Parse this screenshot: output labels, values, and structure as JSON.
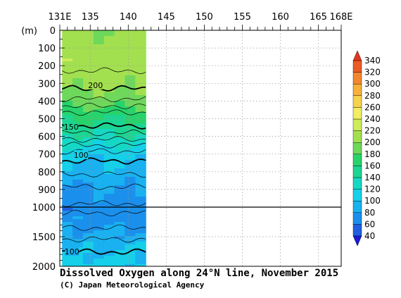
{
  "chart_data": {
    "type": "heatmap",
    "title": "Dissolved Oxygen along 24°N line, November 2015",
    "credit": "(C) Japan Meteorological Agency",
    "x_axis": {
      "range": [
        131,
        168
      ],
      "ticks": [
        {
          "value": 131,
          "label": "131E"
        },
        {
          "value": 135,
          "label": "135"
        },
        {
          "value": 140,
          "label": "140"
        },
        {
          "value": 145,
          "label": "145"
        },
        {
          "value": 150,
          "label": "150"
        },
        {
          "value": 155,
          "label": "155"
        },
        {
          "value": 160,
          "label": "160"
        },
        {
          "value": 165,
          "label": "165"
        },
        {
          "value": 168,
          "label": "168E"
        }
      ]
    },
    "y_axis": {
      "unit_label": "(m)",
      "upper_range": [
        0,
        1000
      ],
      "lower_range": [
        1000,
        2000
      ],
      "upper_ticks": [
        0,
        100,
        200,
        300,
        400,
        500,
        600,
        700,
        800,
        900,
        1000
      ],
      "lower_ticks": [
        1500,
        2000
      ]
    },
    "data_extent_x": [
      131.3,
      142.3
    ],
    "colorbar": {
      "levels": [
        40,
        60,
        80,
        100,
        120,
        140,
        160,
        180,
        200,
        220,
        240,
        260,
        280,
        300,
        320,
        340
      ],
      "colors": [
        "#1f5fe0",
        "#1b8fec",
        "#19b1f0",
        "#15d0e8",
        "#15d8c4",
        "#1cd592",
        "#27d36a",
        "#6dd85a",
        "#a2e04f",
        "#cdec59",
        "#f1ee63",
        "#f6d24e",
        "#f6b03b",
        "#f2872e",
        "#ed5b26",
        "#e2361f"
      ],
      "under_color": "#1a1ad8",
      "over_color": "#e2361f"
    },
    "profile": [
      {
        "depth": 0,
        "value": 205
      },
      {
        "depth": 100,
        "value": 210
      },
      {
        "depth": 200,
        "value": 212
      },
      {
        "depth": 300,
        "value": 205
      },
      {
        "depth": 400,
        "value": 188
      },
      {
        "depth": 500,
        "value": 160
      },
      {
        "depth": 600,
        "value": 135
      },
      {
        "depth": 700,
        "value": 105
      },
      {
        "depth": 800,
        "value": 92
      },
      {
        "depth": 900,
        "value": 78
      },
      {
        "depth": 1000,
        "value": 68
      },
      {
        "depth": 1200,
        "value": 72
      },
      {
        "depth": 1500,
        "value": 88
      },
      {
        "depth": 1800,
        "value": 102
      },
      {
        "depth": 2000,
        "value": 110
      }
    ],
    "contour_labels": [
      {
        "text": "200",
        "x": 135.7,
        "depth": 310
      },
      {
        "text": "150",
        "x": 132.5,
        "depth": 545
      },
      {
        "text": "100",
        "x": 133.8,
        "depth": 705
      },
      {
        "text": "100",
        "x": 132.6,
        "depth": 1750
      }
    ],
    "grid": "dotted"
  }
}
